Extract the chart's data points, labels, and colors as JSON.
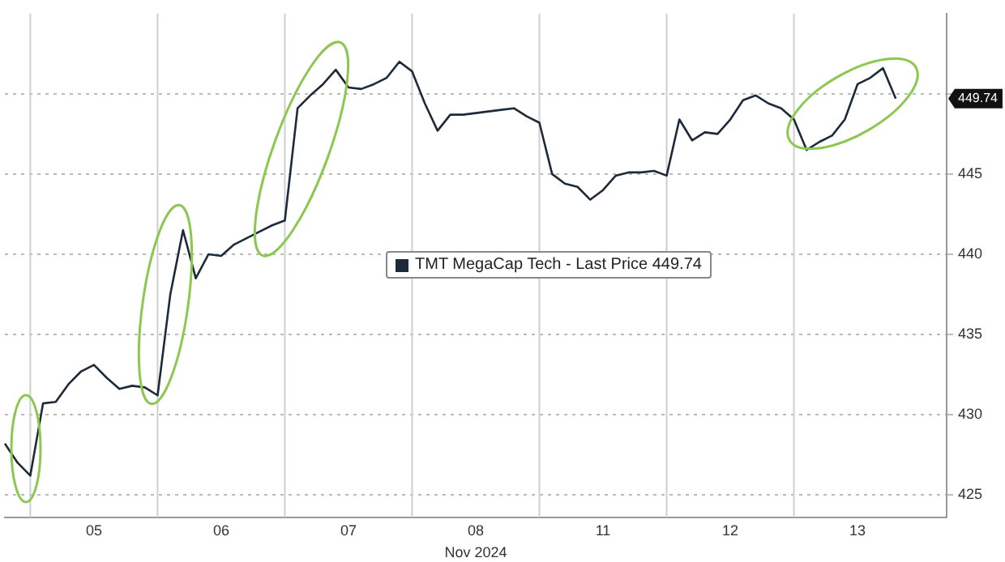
{
  "chart_data": {
    "type": "line",
    "xlabel": "Nov 2024",
    "categories": [
      null,
      null,
      null,
      null,
      null,
      null,
      null,
      "05",
      null,
      null,
      null,
      null,
      null,
      null,
      null,
      null,
      null,
      "06",
      null,
      null,
      null,
      null,
      null,
      null,
      null,
      null,
      null,
      "07",
      null,
      null,
      null,
      null,
      null,
      null,
      null,
      null,
      null,
      "08",
      null,
      null,
      null,
      null,
      null,
      null,
      null,
      null,
      null,
      "11",
      null,
      null,
      null,
      null,
      null,
      null,
      null,
      null,
      null,
      "12",
      null,
      null,
      null,
      null,
      null,
      null,
      null,
      null,
      null,
      "13",
      null,
      null,
      null,
      null,
      null,
      null,
      null
    ],
    "series": [
      {
        "name": "TMT MegaCap Tech - Last Price 449.74",
        "color": "#1c2a3a",
        "values": [
          428.2,
          427,
          426.2,
          430.7,
          430.8,
          431.9,
          432.7,
          433.1,
          432.3,
          431.6,
          431.8,
          431.7,
          431.2,
          437.5,
          441.5,
          438.5,
          440,
          439.9,
          440.6,
          441,
          441.4,
          441.8,
          442.1,
          449.1,
          449.9,
          450.6,
          451.5,
          450.4,
          450.3,
          450.6,
          451,
          452,
          451.4,
          449.4,
          447.7,
          448.7,
          448.7,
          448.8,
          448.9,
          449,
          449.1,
          448.6,
          448.2,
          445,
          444.4,
          444.2,
          443.4,
          444,
          444.9,
          445.1,
          445.1,
          445.2,
          444.9,
          448.4,
          447.1,
          447.6,
          447.5,
          448.4,
          449.6,
          449.9,
          449.4,
          449.1,
          448.4,
          446.5,
          447,
          447.4,
          448.4,
          450.6,
          451,
          451.6,
          449.7,
          null,
          null,
          null,
          null
        ]
      }
    ],
    "ylim": [
      423.6,
      455
    ],
    "yticks": [
      425,
      430,
      435,
      440,
      445,
      {
        "value": 450,
        "label": null
      }
    ],
    "annotations": [
      "449.74"
    ],
    "grid": true,
    "legend": "center",
    "marker": "none",
    "line_style": "solid"
  }
}
